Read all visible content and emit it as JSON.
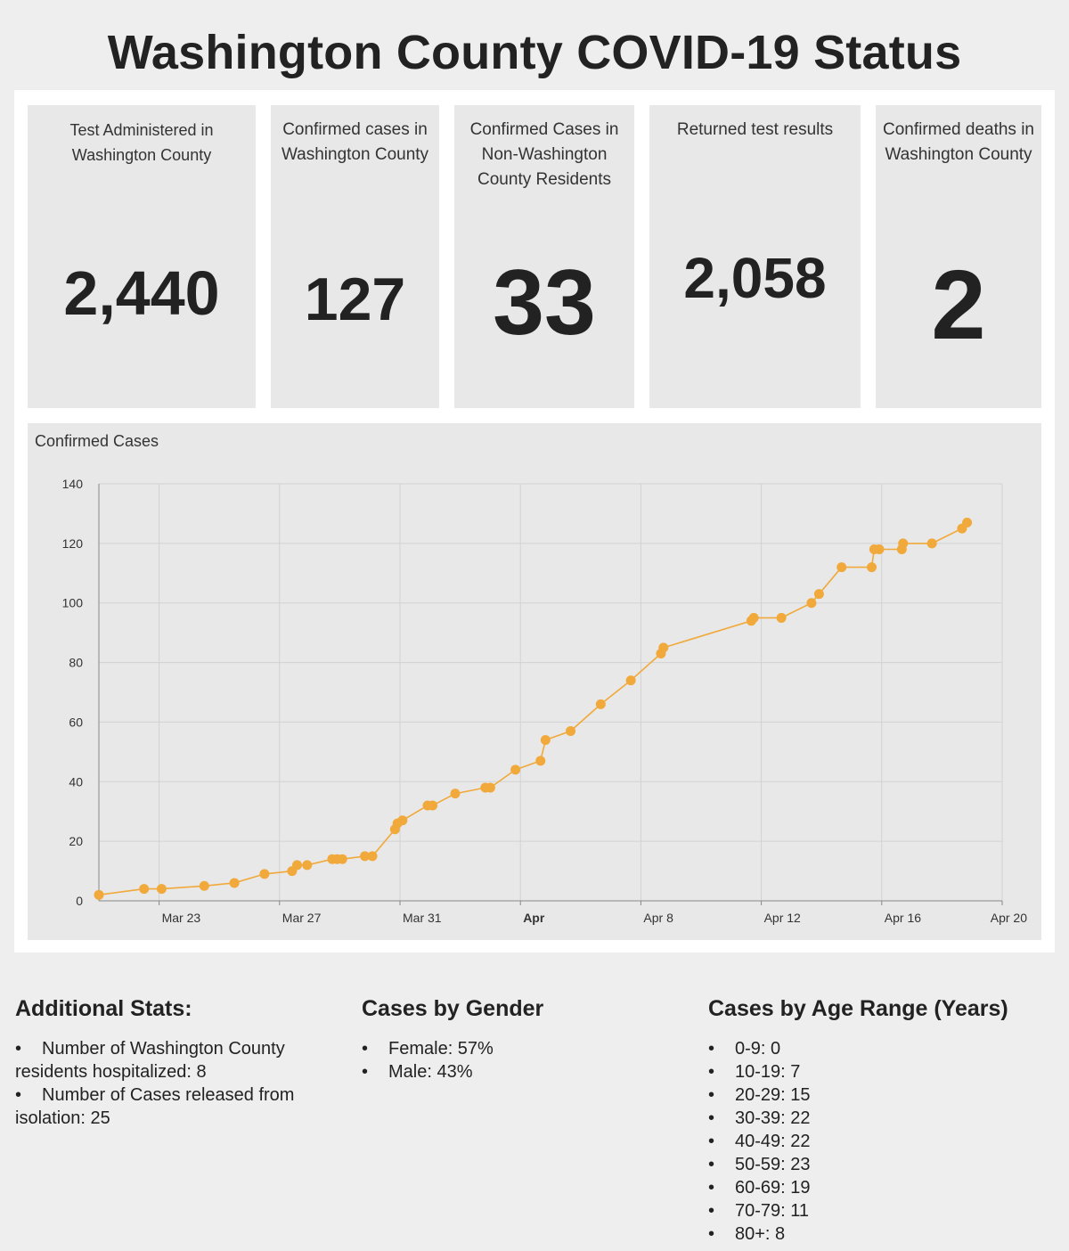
{
  "page": {
    "title": "Washington County COVID-19 Status"
  },
  "stats": [
    {
      "label": "Test Administered in Washington County",
      "value": "2,440"
    },
    {
      "label": "Confirmed cases in Washington County",
      "value": "127"
    },
    {
      "label": "Confirmed Cases in Non-Washington County Residents",
      "value": "33"
    },
    {
      "label": "Returned test results",
      "value": "2,058"
    },
    {
      "label": "Confirmed deaths in Washington County",
      "value": "2"
    }
  ],
  "chart_data": {
    "type": "line",
    "title": "Confirmed Cases",
    "xlabel": "",
    "ylabel": "",
    "ylim": [
      0,
      140
    ],
    "xlim": [
      "2020-03-21",
      "2020-04-20"
    ],
    "yticks": [
      0,
      20,
      40,
      60,
      80,
      100,
      120,
      140
    ],
    "xticks": [
      {
        "date": "2020-03-23",
        "label": "Mar 23",
        "bold": false
      },
      {
        "date": "2020-03-27",
        "label": "Mar 27",
        "bold": false
      },
      {
        "date": "2020-03-31",
        "label": "Mar 31",
        "bold": false
      },
      {
        "date": "2020-04-04",
        "label": "Apr",
        "bold": true
      },
      {
        "date": "2020-04-08",
        "label": "Apr 8",
        "bold": false
      },
      {
        "date": "2020-04-12",
        "label": "Apr 12",
        "bold": false
      },
      {
        "date": "2020-04-16",
        "label": "Apr 16",
        "bold": false
      },
      {
        "date": "2020-04-20",
        "label": "Apr 20",
        "bold": false
      }
    ],
    "grid": true,
    "color": "#f0a93a",
    "series": [
      {
        "points": [
          [
            "2020-03-21T00:00",
            2
          ],
          [
            "2020-03-22T12:00",
            4
          ],
          [
            "2020-03-23T02:00",
            4
          ],
          [
            "2020-03-24T12:00",
            5
          ],
          [
            "2020-03-25T12:00",
            6
          ],
          [
            "2020-03-26T12:00",
            9
          ],
          [
            "2020-03-27T10:00",
            10
          ],
          [
            "2020-03-27T14:00",
            12
          ],
          [
            "2020-03-27T22:00",
            12
          ],
          [
            "2020-03-28T18:00",
            14
          ],
          [
            "2020-03-28T22:00",
            14
          ],
          [
            "2020-03-29T02:00",
            14
          ],
          [
            "2020-03-29T20:00",
            15
          ],
          [
            "2020-03-30T02:00",
            15
          ],
          [
            "2020-03-30T20:00",
            24
          ],
          [
            "2020-03-30T22:00",
            26
          ],
          [
            "2020-03-31T02:00",
            27
          ],
          [
            "2020-03-31T22:00",
            32
          ],
          [
            "2020-04-01T02:00",
            32
          ],
          [
            "2020-04-01T20:00",
            36
          ],
          [
            "2020-04-02T20:00",
            38
          ],
          [
            "2020-04-03T00:00",
            38
          ],
          [
            "2020-04-03T20:00",
            44
          ],
          [
            "2020-04-04T16:00",
            47
          ],
          [
            "2020-04-04T20:00",
            54
          ],
          [
            "2020-04-05T16:00",
            57
          ],
          [
            "2020-04-06T16:00",
            66
          ],
          [
            "2020-04-07T16:00",
            74
          ],
          [
            "2020-04-08T16:00",
            83
          ],
          [
            "2020-04-08T18:00",
            85
          ],
          [
            "2020-04-11T16:00",
            94
          ],
          [
            "2020-04-11T18:00",
            95
          ],
          [
            "2020-04-12T16:00",
            95
          ],
          [
            "2020-04-13T16:00",
            100
          ],
          [
            "2020-04-13T22:00",
            103
          ],
          [
            "2020-04-14T16:00",
            112
          ],
          [
            "2020-04-15T16:00",
            112
          ],
          [
            "2020-04-15T18:00",
            118
          ],
          [
            "2020-04-15T22:00",
            118
          ],
          [
            "2020-04-16T16:00",
            118
          ],
          [
            "2020-04-16T17:00",
            120
          ],
          [
            "2020-04-17T16:00",
            120
          ],
          [
            "2020-04-18T16:00",
            125
          ],
          [
            "2020-04-18T20:00",
            127
          ]
        ]
      }
    ]
  },
  "additional": {
    "title": "Additional Stats:",
    "items": [
      [
        "Number of Washington County",
        "residents hospitalized: 8"
      ],
      [
        "Number of Cases released from",
        "isolation: 25"
      ]
    ]
  },
  "gender": {
    "title": "Cases by Gender",
    "items": [
      "Female: 57%",
      "Male: 43%"
    ]
  },
  "age": {
    "title": "Cases by Age Range (Years)",
    "items": [
      "0-9: 0",
      "10-19: 7",
      "20-29: 15",
      "30-39: 22",
      "40-49: 22",
      "50-59: 23",
      "60-69: 19",
      "70-79: 11",
      "80+: 8"
    ]
  },
  "bullet_char": "•"
}
